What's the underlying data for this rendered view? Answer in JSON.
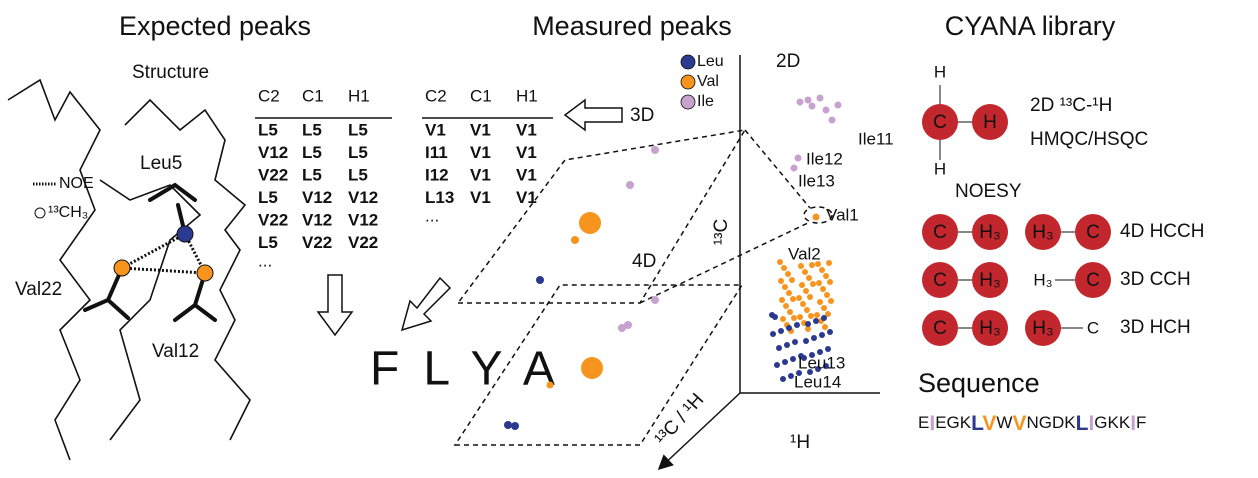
{
  "headings": {
    "expected": "Expected peaks",
    "measured": "Measured peaks",
    "library": "CYANA library"
  },
  "residue_colors": {
    "L": "#2b3990",
    "V": "#f7941d",
    "I": "#c7a2cf"
  },
  "structure": {
    "label": "Structure",
    "residues": [
      "Leu5",
      "Val22",
      "Val12"
    ],
    "legend": [
      "NOE",
      "¹³CH₃"
    ]
  },
  "expected_table": {
    "header": [
      "C2",
      "C1",
      "H1"
    ],
    "rows": [
      [
        "L5",
        "L5",
        "L5"
      ],
      [
        "V12",
        "L5",
        "L5"
      ],
      [
        "V22",
        "L5",
        "L5"
      ],
      [
        "L5",
        "V12",
        "V12"
      ],
      [
        "V22",
        "V12",
        "V12"
      ],
      [
        "L5",
        "V22",
        "V22"
      ]
    ],
    "more": "..."
  },
  "measured_table": {
    "header": [
      "C2",
      "C1",
      "H1"
    ],
    "rows": [
      [
        "V1",
        "V1",
        "V1"
      ],
      [
        "I11",
        "V1",
        "V1"
      ],
      [
        "I12",
        "V1",
        "V1"
      ],
      [
        "L13",
        "V1",
        "V1"
      ]
    ],
    "more": "..."
  },
  "flya": "FLYA",
  "spectra": {
    "planes": [
      "3D",
      "4D",
      "2D"
    ],
    "legend": [
      "Leu",
      "Val",
      "Ile"
    ],
    "peak_labels": [
      "Ile11",
      "Ile12",
      "Ile13",
      "Val1",
      "Val2",
      "Leu13",
      "Leu14"
    ],
    "axes": [
      "¹³C",
      "¹H",
      "¹³C / ¹H"
    ]
  },
  "library": {
    "hsqc": {
      "atoms": [
        "C",
        "H"
      ],
      "h_labels": [
        "H",
        "H"
      ],
      "experiment": [
        "2D ¹³C-¹H",
        "HMQC/HSQC"
      ]
    },
    "noesy_title": "NOESY",
    "noesy": [
      {
        "atoms": [
          "C",
          "H₃",
          "H₃",
          "C"
        ],
        "circled": [
          true,
          true,
          true,
          true
        ],
        "name": "4D HCCH"
      },
      {
        "atoms": [
          "C",
          "H₃",
          "H₃",
          "C"
        ],
        "circled": [
          true,
          true,
          false,
          true
        ],
        "name": "3D CCH"
      },
      {
        "atoms": [
          "C",
          "H₃",
          "H₃",
          "C"
        ],
        "circled": [
          true,
          true,
          true,
          false
        ],
        "name": "3D HCH"
      }
    ],
    "sequence_title": "Sequence",
    "sequence": [
      "E",
      "I",
      "E",
      "G",
      "K",
      "L",
      "V",
      "W",
      "V",
      "N",
      "G",
      "D",
      "K",
      "L",
      "I",
      "G",
      "K",
      "K",
      "I",
      "F"
    ]
  }
}
